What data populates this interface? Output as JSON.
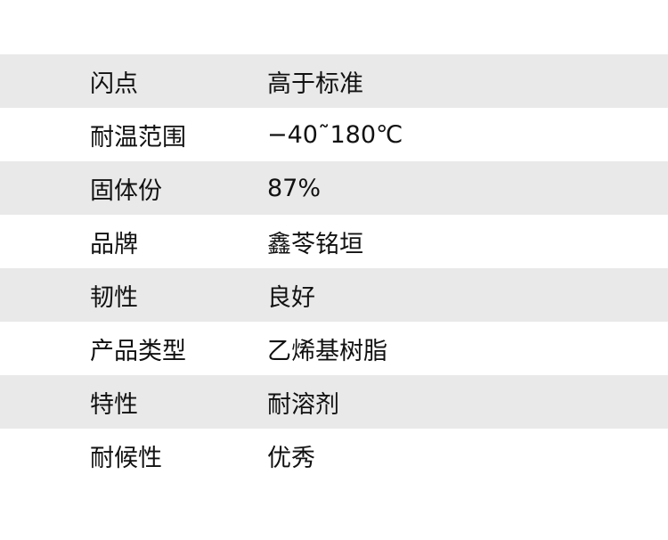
{
  "rows": [
    {
      "label": "闪点",
      "value": "高于标准"
    },
    {
      "label": "耐温范围",
      "value": "−40˜180℃"
    },
    {
      "label": "固体份",
      "value": "87%"
    },
    {
      "label": "品牌",
      "value": "鑫苓铭垣"
    },
    {
      "label": "韧性",
      "value": "良好"
    },
    {
      "label": "产品类型",
      "value": "乙烯基树脂"
    },
    {
      "label": "特性",
      "value": "耐溶剂"
    },
    {
      "label": "耐候性",
      "value": "优秀"
    }
  ],
  "colors": {
    "stripe": "#e9e9e9",
    "background": "#ffffff",
    "text": "#111111"
  }
}
